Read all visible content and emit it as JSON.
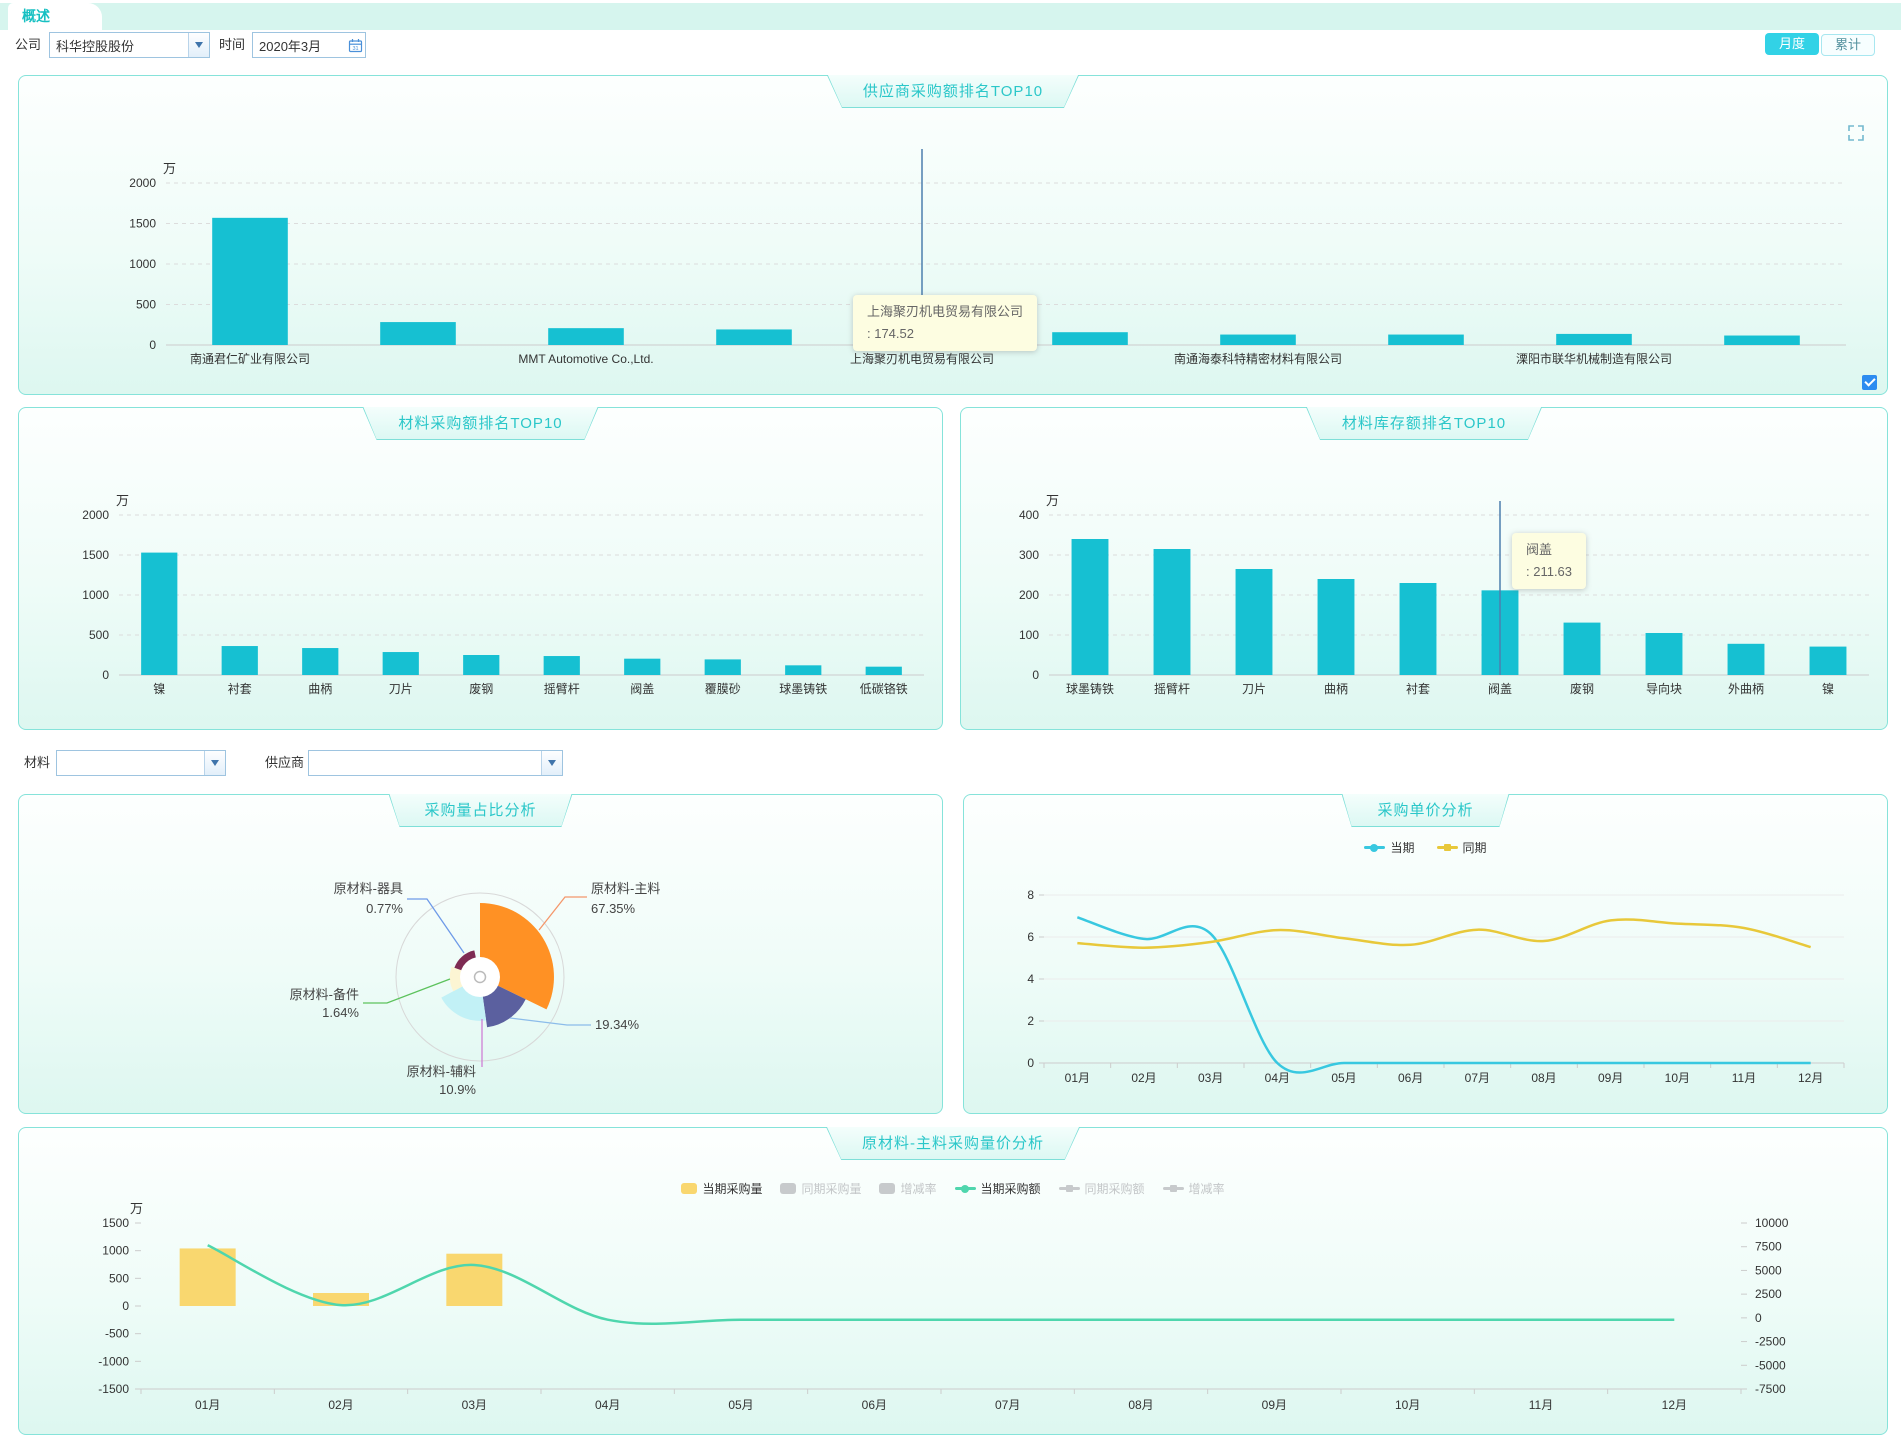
{
  "page": {
    "tab_label": "概述"
  },
  "toolbar": {
    "company_label": "公司",
    "company_value": "科华控股股份",
    "time_label": "时间",
    "time_value": "2020年3月",
    "monthly_button": "月度",
    "cumulative_button": "累计"
  },
  "filters2": {
    "material_label": "材料",
    "material_value": "",
    "supplier_label": "供应商",
    "supplier_value": ""
  },
  "colors": {
    "accent": "#2bc7c9",
    "bar": "#16c0d2",
    "crosshair": "#4d7fae",
    "tooltip_bg": "#fdfde1",
    "line_current": "#38c8e0",
    "line_prev": "#e8c83a",
    "combo_bar": "#f9d76f",
    "combo_line": "#4fd6ad",
    "inactive": "#c7cacc",
    "inactive_text": "#c3c6c8"
  },
  "chart_data": [
    {
      "id": "supplier_purchase_top10",
      "type": "bar",
      "title": "供应商采购额排名TOP10",
      "unit": "万",
      "ylim": [
        0,
        2000
      ],
      "yticks": [
        0,
        500,
        1000,
        1500,
        2000
      ],
      "categories": [
        "南通君仁矿业有限公司",
        "",
        "MMT Automotive Co.,Ltd.",
        "",
        "上海聚刃机电贸易有限公司",
        "",
        "南通海泰科特精密材料有限公司",
        "",
        "溧阳市联华机械制造有限公司",
        ""
      ],
      "values": [
        1570,
        283,
        208,
        192,
        174.52,
        158,
        129,
        129,
        137,
        117
      ],
      "tooltip": {
        "bar_index": 4,
        "title": "上海聚刃机电贸易有限公司",
        "value_line": ": 174.52"
      }
    },
    {
      "id": "material_purchase_top10",
      "type": "bar",
      "title": "材料采购额排名TOP10",
      "unit": "万",
      "ylim": [
        0,
        2000
      ],
      "yticks": [
        0,
        500,
        1000,
        1500,
        2000
      ],
      "categories": [
        "镍",
        "衬套",
        "曲柄",
        "刀片",
        "废钢",
        "摇臂杆",
        "阀盖",
        "覆膜砂",
        "球墨铸铁",
        "低碳铬铁"
      ],
      "values": [
        1530,
        362,
        337,
        287,
        250,
        237,
        204,
        195,
        121,
        104
      ]
    },
    {
      "id": "material_inventory_top10",
      "type": "bar",
      "title": "材料库存额排名TOP10",
      "unit": "万",
      "ylim": [
        0,
        400
      ],
      "yticks": [
        0,
        100,
        200,
        300,
        400
      ],
      "categories": [
        "球墨铸铁",
        "摇臂杆",
        "刀片",
        "曲柄",
        "衬套",
        "阀盖",
        "废钢",
        "导向块",
        "外曲柄",
        "镍"
      ],
      "values": [
        340,
        315,
        265,
        240,
        230,
        211.63,
        131,
        105,
        78,
        71
      ],
      "tooltip": {
        "bar_index": 5,
        "title": "阀盖",
        "value_line": ": 211.63"
      }
    },
    {
      "id": "purchase_qty_share",
      "type": "pie",
      "rose": true,
      "title": "采购量占比分析",
      "slices": [
        {
          "name": "原材料-主料",
          "pct": 67.35,
          "pct_label": "67.35%",
          "color": "#ff9124",
          "line_color": "#f4976b"
        },
        {
          "name": "",
          "pct": 19.34,
          "pct_label": "19.34%",
          "color": "#5b609f",
          "line_color": "#8cbcea"
        },
        {
          "name": "原材料-辅料",
          "pct": 10.9,
          "pct_label": "10.9%",
          "color": "#c2f1f6",
          "line_color": "#cf7fd6"
        },
        {
          "name": "原材料-备件",
          "pct": 1.64,
          "pct_label": "1.64%",
          "color": "#fcf5d3",
          "line_color": "#5cc25c"
        },
        {
          "name": "原材料-器具",
          "pct": 0.77,
          "pct_label": "0.77%",
          "color": "#7e2b53",
          "line_color": "#6e9ae8"
        }
      ]
    },
    {
      "id": "purchase_unit_price",
      "type": "line",
      "title": "采购单价分析",
      "x": [
        "01月",
        "02月",
        "03月",
        "04月",
        "05月",
        "06月",
        "07月",
        "08月",
        "09月",
        "10月",
        "11月",
        "12月"
      ],
      "ylim": [
        0,
        8
      ],
      "yticks": [
        0,
        2,
        4,
        6,
        8
      ],
      "series": [
        {
          "name": "当期",
          "color": "#38c8e0",
          "values": [
            6.94,
            5.91,
            6.15,
            0,
            0,
            0,
            0,
            0,
            0,
            0,
            0,
            0
          ]
        },
        {
          "name": "同期",
          "color": "#e8c83a",
          "values": [
            5.71,
            5.49,
            5.76,
            6.33,
            5.94,
            5.63,
            6.35,
            5.81,
            6.79,
            6.64,
            6.43,
            5.52
          ]
        }
      ]
    },
    {
      "id": "main_material_qty_price",
      "type": "combo",
      "title": "原材料-主料采购量价分析",
      "unit": "万",
      "x": [
        "01月",
        "02月",
        "03月",
        "04月",
        "05月",
        "06月",
        "07月",
        "08月",
        "09月",
        "10月",
        "11月",
        "12月"
      ],
      "left_yticks": [
        1500,
        1000,
        500,
        0,
        -500,
        -1000,
        -1500
      ],
      "right_yticks": [
        10000,
        7500,
        5000,
        2500,
        0,
        -2500,
        -5000,
        -7500
      ],
      "legend": [
        {
          "label": "当期采购量",
          "type": "bar",
          "active": true
        },
        {
          "label": "同期采购量",
          "type": "bar",
          "active": false
        },
        {
          "label": "增减率",
          "type": "bar",
          "active": false
        },
        {
          "label": "当期采购额",
          "type": "line",
          "active": true
        },
        {
          "label": "同期采购额",
          "type": "line",
          "active": false
        },
        {
          "label": "增减率",
          "type": "line",
          "active": false
        }
      ],
      "bar_series": {
        "name": "当期采购量",
        "axis": "left",
        "values": [
          1040,
          235,
          945,
          null,
          null,
          null,
          null,
          null,
          null,
          null,
          null,
          null
        ]
      },
      "line_series": {
        "name": "当期采购额",
        "axis": "right",
        "values": [
          7650,
          1350,
          5570,
          -190,
          -190,
          -190,
          -190,
          -190,
          -190,
          -190,
          -190,
          -190
        ]
      }
    }
  ]
}
